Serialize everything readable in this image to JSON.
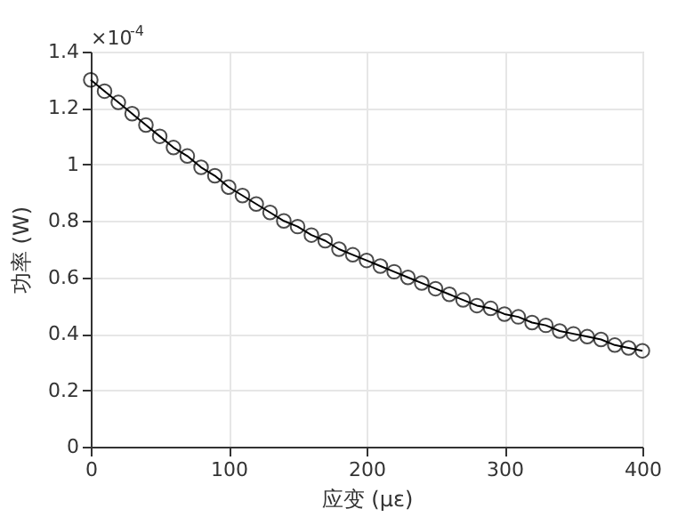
{
  "chart_data": {
    "type": "line",
    "xlabel": "应变 (με)",
    "ylabel": "功率 (W)",
    "annotations": [
      "×10$^{-4}$"
    ],
    "x": [
      0,
      10,
      20,
      30,
      40,
      50,
      60,
      70,
      80,
      90,
      100,
      110,
      120,
      130,
      140,
      150,
      160,
      170,
      180,
      190,
      200,
      210,
      220,
      230,
      240,
      250,
      260,
      270,
      280,
      290,
      300,
      310,
      320,
      330,
      340,
      350,
      360,
      370,
      380,
      390,
      400
    ],
    "series": [
      {
        "color": "#000000",
        "values": [
          1.3,
          1.26,
          1.22,
          1.18,
          1.14,
          1.1,
          1.06,
          1.03,
          0.99,
          0.96,
          0.92,
          0.89,
          0.86,
          0.83,
          0.8,
          0.78,
          0.75,
          0.73,
          0.7,
          0.68,
          0.66,
          0.64,
          0.62,
          0.6,
          0.58,
          0.56,
          0.54,
          0.52,
          0.5,
          0.49,
          0.47,
          0.46,
          0.44,
          0.43,
          0.41,
          0.4,
          0.39,
          0.38,
          0.36,
          0.35,
          0.34
        ]
      }
    ],
    "xlim": [
      0,
      400
    ],
    "xticks": [
      0,
      100,
      200,
      300,
      400
    ],
    "ylim": [
      0,
      1.4
    ],
    "yticks": [
      0,
      0.2,
      0.4,
      0.6,
      0.8,
      1,
      1.2,
      1.4
    ],
    "grid": true,
    "marker": "circle",
    "line_style": "solid"
  }
}
